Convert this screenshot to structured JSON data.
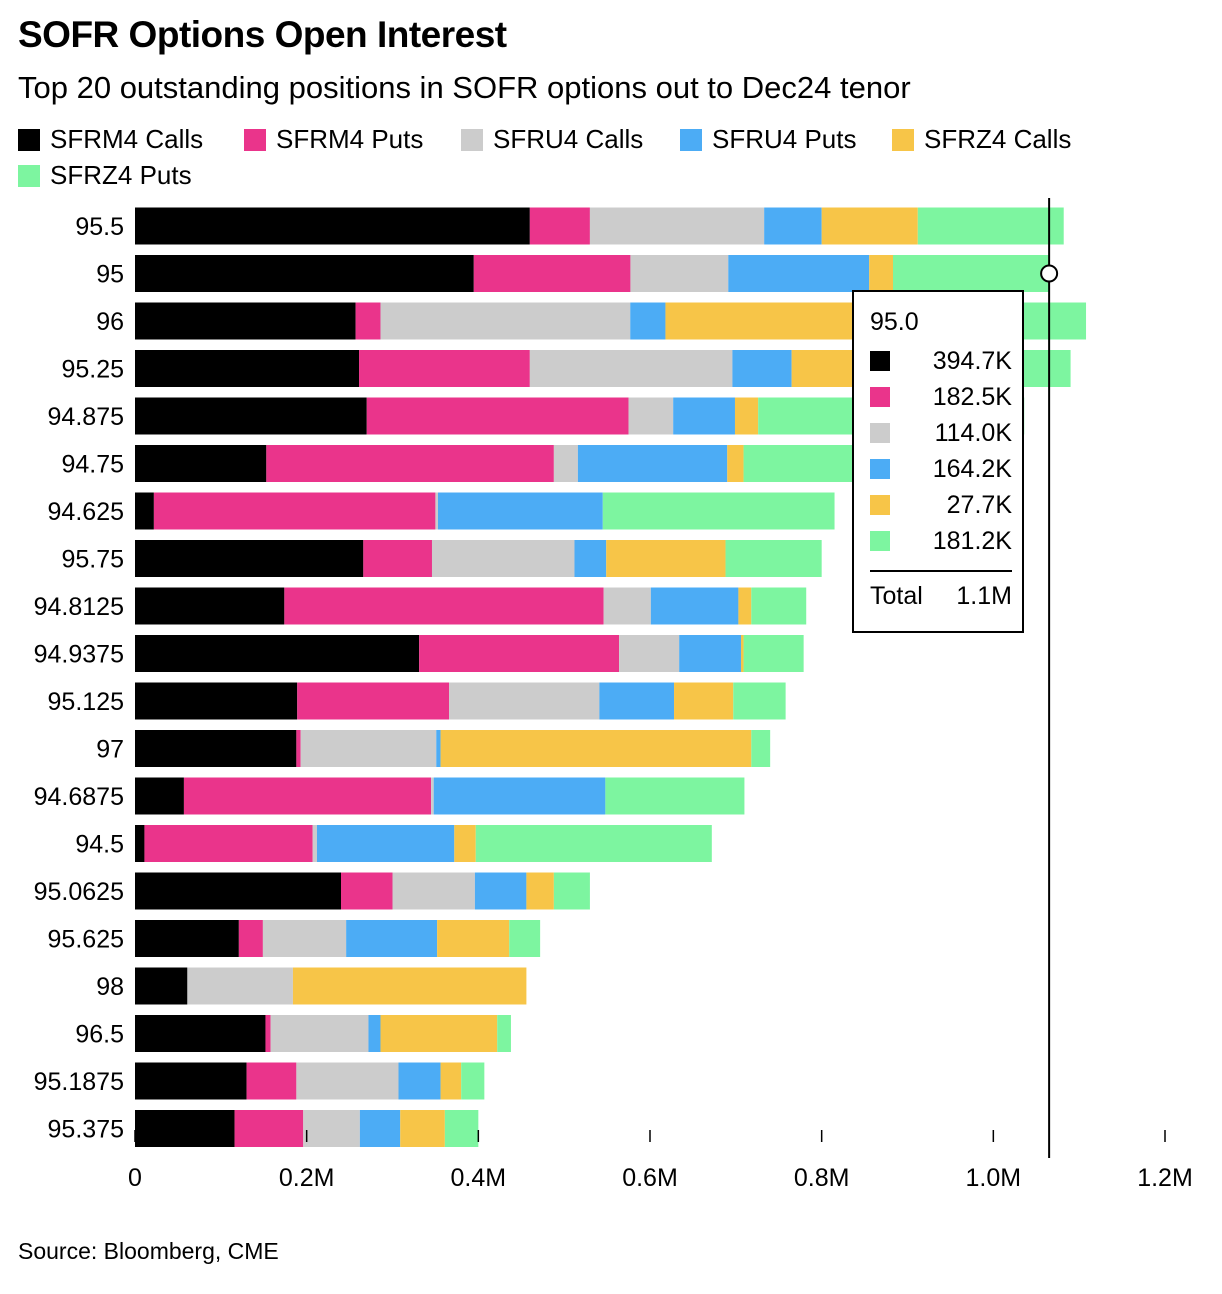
{
  "header": {
    "title": "SOFR Options Open Interest",
    "subtitle": "Top 20 outstanding positions in SOFR options out to Dec24 tenor"
  },
  "footer": {
    "source": "Source: Bloomberg, CME"
  },
  "tooltip": {
    "strike": "95.0",
    "rows": [
      {
        "value": "394.7K",
        "color": "#000000"
      },
      {
        "value": "182.5K",
        "color": "#ea348b"
      },
      {
        "value": "114.0K",
        "color": "#cccccc"
      },
      {
        "value": "164.2K",
        "color": "#4cacf5"
      },
      {
        "value": "27.7K",
        "color": "#f7c548"
      },
      {
        "value": "181.2K",
        "color": "#7df5a0"
      }
    ],
    "total_label": "Total",
    "total_value": "1.1M"
  },
  "chart_data": {
    "type": "bar",
    "orientation": "horizontal",
    "stacked": true,
    "title": "SOFR Options Open Interest",
    "subtitle": "Top 20 outstanding positions in SOFR options out to Dec24 tenor",
    "xlim": [
      0,
      1200000
    ],
    "x_ticks": [
      0,
      200000,
      400000,
      600000,
      800000,
      1000000,
      1200000
    ],
    "x_tick_labels": [
      "0",
      "0.2M",
      "0.4M",
      "0.6M",
      "0.8M",
      "1.0M",
      "1.2M"
    ],
    "legend_position": "top",
    "grid": false,
    "crosshair_x": 1065000,
    "categories": [
      "95.5",
      "95",
      "96",
      "95.25",
      "94.875",
      "94.75",
      "94.625",
      "95.75",
      "94.8125",
      "94.9375",
      "95.125",
      "97",
      "94.6875",
      "94.5",
      "95.0625",
      "95.625",
      "98",
      "96.5",
      "95.1875",
      "95.375"
    ],
    "series": [
      {
        "name": "SFRM4 Calls",
        "color": "#000000",
        "values": [
          460000,
          394700,
          257000,
          261000,
          270000,
          153000,
          22000,
          266000,
          174000,
          331000,
          189000,
          188000,
          57000,
          11000,
          240000,
          121000,
          61000,
          152000,
          130000,
          116000
        ]
      },
      {
        "name": "SFRM4 Puts",
        "color": "#ea348b",
        "values": [
          70000,
          182500,
          29000,
          199000,
          305000,
          335000,
          328000,
          80000,
          372000,
          233000,
          177000,
          5000,
          288000,
          196000,
          60000,
          28000,
          0,
          6000,
          58000,
          80000
        ]
      },
      {
        "name": "SFRU4 Calls",
        "color": "#cccccc",
        "values": [
          203000,
          114000,
          291000,
          236000,
          52000,
          28000,
          3000,
          166000,
          55000,
          70000,
          175000,
          158000,
          3000,
          5000,
          96000,
          97000,
          123000,
          114000,
          119000,
          66000
        ]
      },
      {
        "name": "SFRU4 Puts",
        "color": "#4cacf5",
        "values": [
          67000,
          164200,
          41000,
          69000,
          72000,
          174000,
          192000,
          37000,
          102000,
          72000,
          87000,
          5000,
          200000,
          160000,
          60000,
          106000,
          0,
          14000,
          49000,
          47000
        ]
      },
      {
        "name": "SFRZ4 Calls",
        "color": "#f7c548",
        "values": [
          112000,
          27700,
          400000,
          225000,
          27000,
          19000,
          0,
          139000,
          15000,
          3000,
          69000,
          362000,
          0,
          25000,
          32000,
          84000,
          272000,
          136000,
          24000,
          52000
        ]
      },
      {
        "name": "SFRZ4 Puts",
        "color": "#7df5a0",
        "values": [
          170000,
          181200,
          90000,
          100000,
          310000,
          230000,
          270000,
          112000,
          64000,
          70000,
          61000,
          22000,
          162000,
          275000,
          42000,
          36000,
          0,
          16000,
          27000,
          39000
        ]
      }
    ]
  }
}
